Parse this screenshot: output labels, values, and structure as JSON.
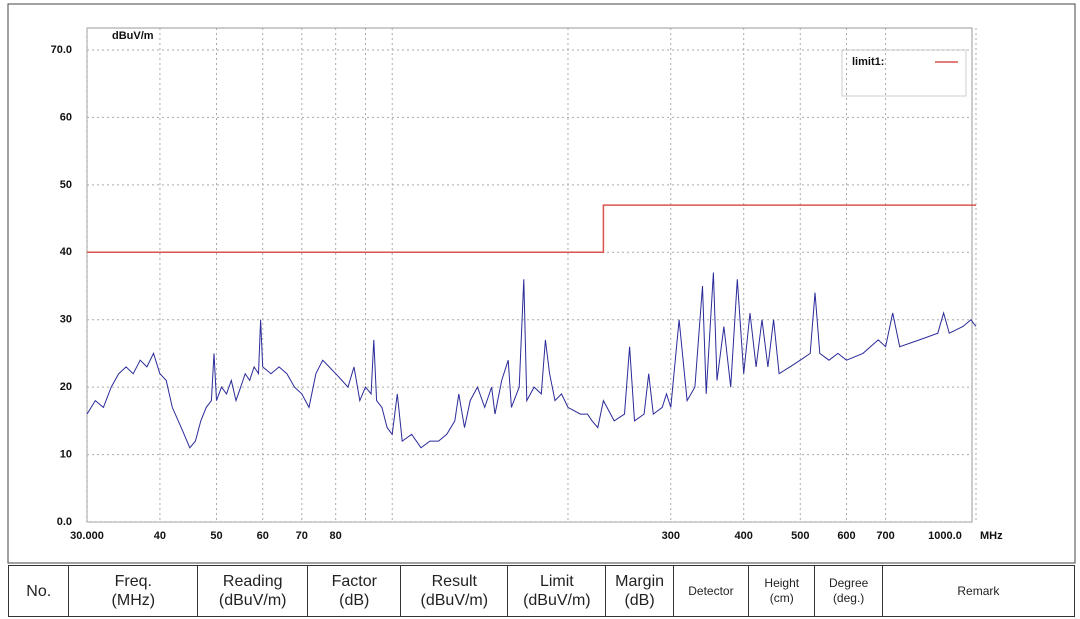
{
  "chart_data": {
    "type": "line",
    "y_unit": "dBuV/m",
    "x_unit": "MHz",
    "xscale": "log",
    "grid": true,
    "xlim": [
      30,
      1000
    ],
    "ylim": [
      0,
      70
    ],
    "xticks": [
      {
        "value": 30,
        "label": "30.000"
      },
      40,
      50,
      60,
      70,
      80,
      300,
      400,
      500,
      600,
      700,
      {
        "value": 1000,
        "label": "1000.0"
      }
    ],
    "xgrid_extra": [
      90,
      100,
      200
    ],
    "yticks": [
      {
        "value": 0,
        "label": "0.0"
      },
      10,
      20,
      30,
      40,
      50,
      60,
      {
        "value": 70,
        "label": "70.0"
      }
    ],
    "legend": "upper right",
    "series": [
      {
        "name": "limit1:",
        "color": "#d9534f",
        "x": [
          30,
          230,
          230,
          1000
        ],
        "values": [
          40,
          40,
          47,
          47
        ]
      },
      {
        "color": "#2b2b9a",
        "x": [
          30,
          31,
          32,
          33,
          34,
          35,
          36,
          37,
          38,
          39,
          40,
          41,
          42,
          43,
          44,
          45,
          46,
          47,
          48,
          49,
          49.5,
          50,
          51,
          52,
          53,
          54,
          55,
          56,
          57,
          58,
          59,
          59.5,
          60,
          62,
          64,
          66,
          68,
          70,
          72,
          74,
          76,
          78,
          80,
          82,
          84,
          86,
          88,
          90,
          92,
          93,
          94,
          96,
          98,
          100,
          102,
          104,
          108,
          112,
          116,
          120,
          124,
          128,
          130,
          133,
          136,
          140,
          144,
          148,
          150,
          154,
          158,
          160,
          165,
          168,
          170,
          175,
          180,
          183,
          186,
          190,
          195,
          200,
          210,
          216,
          220,
          225,
          230,
          240,
          250,
          255,
          260,
          270,
          275,
          280,
          290,
          295,
          300,
          310,
          320,
          330,
          340,
          345,
          355,
          360,
          370,
          380,
          390,
          400,
          410,
          420,
          430,
          440,
          450,
          460,
          480,
          500,
          520,
          530,
          540,
          560,
          580,
          600,
          640,
          680,
          700,
          720,
          740,
          800,
          860,
          880,
          900,
          950,
          980,
          1000
        ],
        "values": [
          16,
          18,
          17,
          20,
          22,
          23,
          22,
          24,
          23,
          25,
          22,
          21,
          17,
          15,
          13,
          11,
          12,
          15,
          17,
          18,
          25,
          18,
          20,
          19,
          21,
          18,
          20,
          22,
          21,
          23,
          22,
          30,
          23,
          22,
          23,
          22,
          20,
          19,
          17,
          22,
          24,
          23,
          22,
          21,
          20,
          23,
          18,
          20,
          19,
          27,
          18,
          17,
          14,
          13,
          19,
          12,
          13,
          11,
          12,
          12,
          13,
          15,
          19,
          14,
          18,
          20,
          17,
          20,
          16,
          21,
          24,
          17,
          20,
          36,
          18,
          20,
          19,
          27,
          22,
          18,
          19,
          17,
          16,
          16,
          15,
          14,
          18,
          15,
          16,
          26,
          15,
          16,
          22,
          16,
          17,
          19,
          17,
          30,
          18,
          20,
          35,
          19,
          37,
          21,
          29,
          20,
          36,
          22,
          31,
          23,
          30,
          23,
          30,
          22,
          23,
          24,
          25,
          34,
          25,
          24,
          25,
          24,
          25,
          27,
          26,
          31,
          26,
          27,
          28,
          31,
          28,
          29,
          30,
          29
        ]
      }
    ]
  },
  "table": {
    "columns": [
      [
        "No."
      ],
      [
        "Freq.",
        "(MHz)"
      ],
      [
        "Reading",
        "(dBuV/m)"
      ],
      [
        "Factor",
        "(dB)"
      ],
      [
        "Result",
        "(dBuV/m)"
      ],
      [
        "Limit",
        "(dBuV/m)"
      ],
      [
        "Margin",
        "(dB)"
      ],
      [
        "Detector"
      ],
      [
        "Height",
        "(cm)"
      ],
      [
        "Degree",
        "(deg.)"
      ],
      [
        "Remark"
      ]
    ]
  }
}
